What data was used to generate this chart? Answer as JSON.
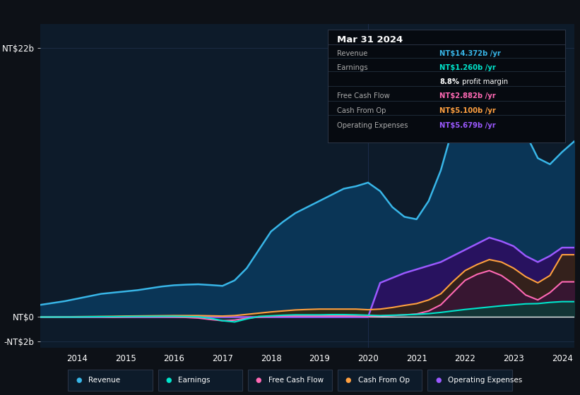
{
  "bg_color": "#0d1117",
  "plot_bg_color": "#0d1b2a",
  "grid_color": "#1e3048",
  "years": [
    2013.25,
    2013.5,
    2013.75,
    2014.0,
    2014.25,
    2014.5,
    2014.75,
    2015.0,
    2015.25,
    2015.5,
    2015.75,
    2016.0,
    2016.25,
    2016.5,
    2016.75,
    2017.0,
    2017.25,
    2017.5,
    2017.75,
    2018.0,
    2018.25,
    2018.5,
    2018.75,
    2019.0,
    2019.25,
    2019.5,
    2019.75,
    2020.0,
    2020.25,
    2020.5,
    2020.75,
    2021.0,
    2021.25,
    2021.5,
    2021.75,
    2022.0,
    2022.25,
    2022.5,
    2022.75,
    2023.0,
    2023.25,
    2023.5,
    2023.75,
    2024.0,
    2024.25
  ],
  "revenue": [
    1.0,
    1.15,
    1.3,
    1.5,
    1.7,
    1.9,
    2.0,
    2.1,
    2.2,
    2.35,
    2.5,
    2.6,
    2.65,
    2.68,
    2.62,
    2.55,
    3.0,
    4.0,
    5.5,
    7.0,
    7.8,
    8.5,
    9.0,
    9.5,
    10.0,
    10.5,
    10.7,
    11.0,
    10.3,
    9.0,
    8.2,
    8.0,
    9.5,
    12.0,
    15.5,
    19.0,
    21.5,
    22.5,
    21.0,
    18.0,
    15.0,
    13.0,
    12.5,
    13.5,
    14.372
  ],
  "earnings": [
    0.0,
    0.0,
    0.0,
    0.0,
    0.02,
    0.03,
    0.03,
    0.04,
    0.05,
    0.05,
    0.06,
    0.06,
    0.04,
    0.02,
    -0.1,
    -0.3,
    -0.4,
    -0.15,
    0.05,
    0.1,
    0.15,
    0.18,
    0.18,
    0.18,
    0.2,
    0.2,
    0.18,
    0.15,
    0.12,
    0.15,
    0.18,
    0.22,
    0.28,
    0.38,
    0.5,
    0.62,
    0.72,
    0.82,
    0.92,
    1.0,
    1.08,
    1.1,
    1.2,
    1.26,
    1.26
  ],
  "free_cash_flow": [
    -0.02,
    -0.01,
    0.0,
    0.0,
    0.0,
    0.0,
    -0.02,
    0.0,
    0.01,
    0.01,
    0.01,
    0.0,
    -0.03,
    -0.08,
    -0.2,
    -0.3,
    -0.25,
    -0.1,
    0.0,
    0.05,
    0.08,
    0.09,
    0.09,
    0.09,
    0.09,
    0.09,
    0.08,
    0.05,
    0.08,
    0.12,
    0.18,
    0.25,
    0.5,
    1.0,
    2.0,
    3.0,
    3.5,
    3.8,
    3.4,
    2.7,
    1.8,
    1.4,
    2.0,
    2.882,
    2.882
  ],
  "cash_from_op": [
    0.01,
    0.01,
    0.02,
    0.03,
    0.04,
    0.05,
    0.06,
    0.08,
    0.09,
    0.1,
    0.11,
    0.12,
    0.12,
    0.12,
    0.1,
    0.08,
    0.12,
    0.22,
    0.32,
    0.42,
    0.5,
    0.58,
    0.62,
    0.65,
    0.65,
    0.65,
    0.65,
    0.6,
    0.65,
    0.78,
    0.95,
    1.1,
    1.4,
    1.9,
    2.9,
    3.8,
    4.3,
    4.7,
    4.5,
    4.0,
    3.3,
    2.8,
    3.4,
    5.1,
    5.1
  ],
  "op_expenses": [
    0.0,
    0.0,
    0.0,
    0.0,
    0.0,
    0.0,
    0.0,
    0.0,
    0.0,
    0.0,
    0.0,
    0.0,
    0.0,
    0.0,
    0.0,
    0.0,
    0.0,
    0.0,
    0.0,
    0.0,
    0.0,
    0.0,
    0.0,
    0.0,
    0.0,
    0.0,
    0.0,
    0.0,
    2.8,
    3.2,
    3.6,
    3.9,
    4.2,
    4.5,
    5.0,
    5.5,
    6.0,
    6.5,
    6.2,
    5.8,
    5.0,
    4.5,
    5.0,
    5.679,
    5.679
  ],
  "revenue_line_color": "#38b6e8",
  "revenue_fill_color": "#0a3556",
  "earnings_color": "#00e5cc",
  "earnings_fill": "#0a3d38",
  "fcf_color": "#ff69b4",
  "fcf_fill": "#3a1040",
  "cop_color": "#ffa040",
  "cop_fill": "#3a2800",
  "opex_color": "#9b59ff",
  "opex_fill": "#2a1060",
  "ylim": [
    -2.5,
    24
  ],
  "yticks_vals": [
    -2,
    0,
    22
  ],
  "ytick_labels": [
    "-NT$2b",
    "NT$0",
    "NT$22b"
  ],
  "xticks": [
    2014,
    2015,
    2016,
    2017,
    2018,
    2019,
    2020,
    2021,
    2022,
    2023,
    2024
  ],
  "legend_items": [
    "Revenue",
    "Earnings",
    "Free Cash Flow",
    "Cash From Op",
    "Operating Expenses"
  ],
  "legend_colors": [
    "#38b6e8",
    "#00e5cc",
    "#ff69b4",
    "#ffa040",
    "#9b59ff"
  ],
  "infobox": {
    "title": "Mar 31 2024",
    "rows": [
      {
        "label": "Revenue",
        "value": "NT$14.372b /yr",
        "value_color": "#38b6e8"
      },
      {
        "label": "Earnings",
        "value": "NT$1.260b /yr",
        "value_color": "#00e5cc"
      },
      {
        "label": "",
        "value": "8.8% profit margin",
        "value_color": "white"
      },
      {
        "label": "Free Cash Flow",
        "value": "NT$2.882b /yr",
        "value_color": "#ff69b4"
      },
      {
        "label": "Cash From Op",
        "value": "NT$5.100b /yr",
        "value_color": "#ffa040"
      },
      {
        "label": "Operating Expenses",
        "value": "NT$5.679b /yr",
        "value_color": "#9b59ff"
      }
    ]
  }
}
